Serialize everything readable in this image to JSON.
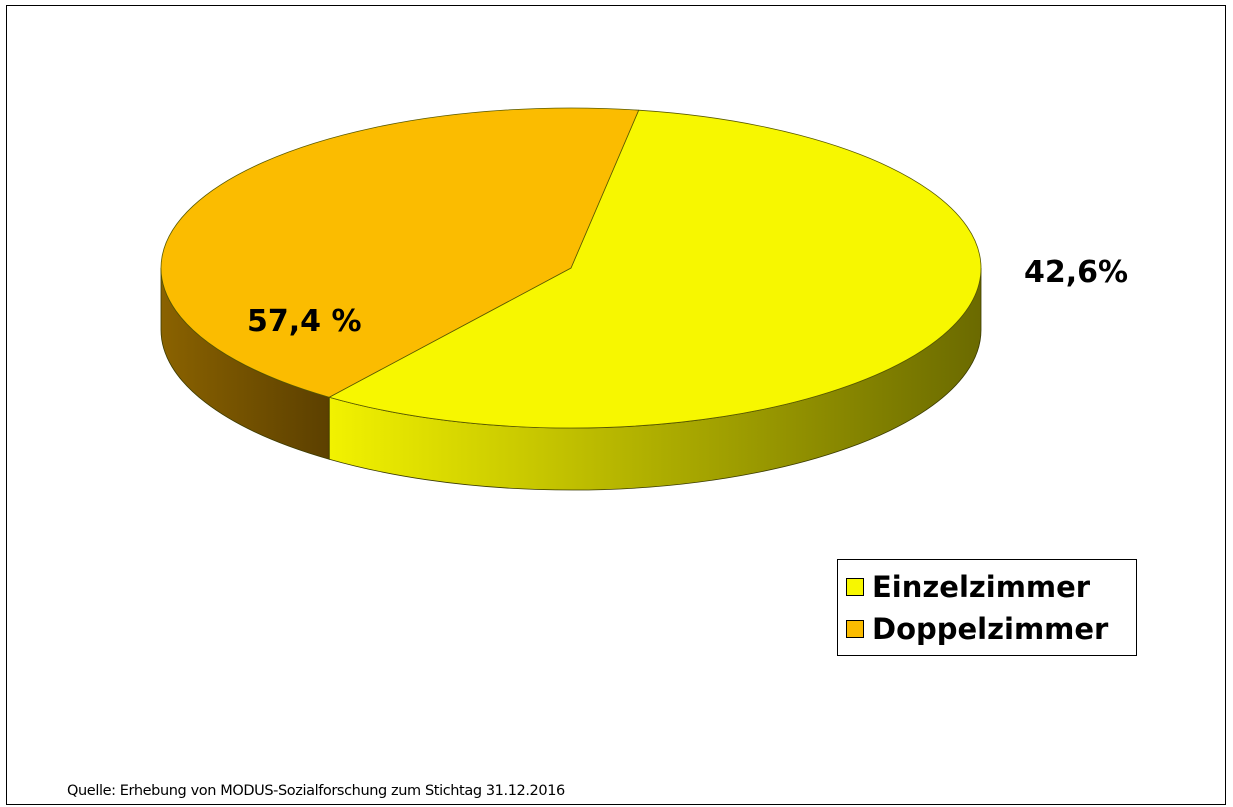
{
  "chart_data": {
    "type": "pie",
    "style": "3d",
    "title": "",
    "slices": [
      {
        "name": "Einzelzimmer",
        "value": 57.4,
        "label": "57,4 %",
        "color": "#F7F700",
        "side_light": "#F2F200",
        "side_dark": "#6B6A00"
      },
      {
        "name": "Doppelzimmer",
        "value": 42.6,
        "label": "42,6%",
        "color": "#FBBC00",
        "side_light": "#8A6200",
        "side_dark": "#5C4000"
      }
    ],
    "legend": {
      "placement": "bottom-right",
      "entries": [
        {
          "label": "Einzelzimmer",
          "color": "#F7F700"
        },
        {
          "label": "Doppelzimmer",
          "color": "#FBBC00"
        }
      ]
    }
  },
  "source_note": "Quelle: Erhebung von MODUS-Sozialforschung zum Stichtag 31.12.2016"
}
